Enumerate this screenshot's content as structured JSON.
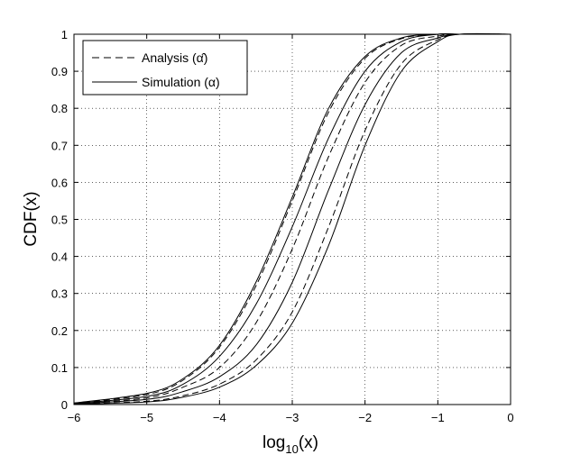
{
  "chart_data": {
    "type": "line",
    "xlabel": "log10(x)",
    "ylabel": "CDF(x)",
    "xlim": [
      -6,
      0
    ],
    "ylim": [
      0,
      1
    ],
    "x_ticks": [
      -6,
      -5,
      -4,
      -3,
      -2,
      -1,
      0
    ],
    "y_ticks": [
      0,
      0.1,
      0.2,
      0.3,
      0.4,
      0.5,
      0.6,
      0.7,
      0.8,
      0.9,
      1
    ],
    "grid": "dotted",
    "legend": {
      "position": "top-left",
      "entries": [
        {
          "label": "Analysis (α̂)",
          "style": "dashed"
        },
        {
          "label": "Simulation (α)",
          "style": "solid"
        }
      ]
    },
    "series": [
      {
        "style": "solid",
        "x": [
          -6,
          -5,
          -4.5,
          -4,
          -3.5,
          -3,
          -2.5,
          -2,
          -1.5,
          -1,
          -0.7
        ],
        "y": [
          0.004,
          0.03,
          0.07,
          0.16,
          0.33,
          0.56,
          0.8,
          0.94,
          0.99,
          1.0,
          1.0
        ]
      },
      {
        "style": "dashed",
        "x": [
          -6,
          -5,
          -4.5,
          -4,
          -3.5,
          -3,
          -2.5,
          -2,
          -1.5,
          -1,
          -0.7
        ],
        "y": [
          0.003,
          0.027,
          0.066,
          0.155,
          0.32,
          0.55,
          0.79,
          0.935,
          0.988,
          1.0,
          1.0
        ]
      },
      {
        "style": "solid",
        "x": [
          -6,
          -5,
          -4.5,
          -4,
          -3.5,
          -3,
          -2.5,
          -2,
          -1.5,
          -1,
          -0.7
        ],
        "y": [
          0.003,
          0.022,
          0.055,
          0.13,
          0.27,
          0.48,
          0.72,
          0.9,
          0.98,
          1.0,
          1.0
        ]
      },
      {
        "style": "dashed",
        "x": [
          -6,
          -5,
          -4.5,
          -4,
          -3.5,
          -3,
          -2.5,
          -2,
          -1.5,
          -1,
          -0.7
        ],
        "y": [
          0.002,
          0.018,
          0.047,
          0.1,
          0.22,
          0.42,
          0.67,
          0.87,
          0.97,
          0.995,
          1.0
        ]
      },
      {
        "style": "solid",
        "x": [
          -6,
          -5,
          -4.5,
          -4,
          -3.5,
          -3,
          -2.5,
          -2,
          -1.5,
          -1,
          -0.7
        ],
        "y": [
          0.002,
          0.014,
          0.035,
          0.075,
          0.16,
          0.33,
          0.58,
          0.81,
          0.95,
          0.99,
          1.0
        ]
      },
      {
        "style": "dashed",
        "x": [
          -6,
          -5,
          -4.5,
          -4,
          -3.5,
          -3,
          -2.5,
          -2,
          -1.5,
          -1,
          -0.7
        ],
        "y": [
          0.001,
          0.009,
          0.024,
          0.055,
          0.12,
          0.25,
          0.48,
          0.74,
          0.92,
          0.985,
          1.0
        ]
      },
      {
        "style": "solid",
        "x": [
          -6,
          -5,
          -4.5,
          -4,
          -3.5,
          -3,
          -2.5,
          -2,
          -1.5,
          -1,
          -0.7
        ],
        "y": [
          0.001,
          0.007,
          0.02,
          0.047,
          0.105,
          0.22,
          0.43,
          0.7,
          0.9,
          0.98,
          1.0
        ]
      }
    ]
  }
}
